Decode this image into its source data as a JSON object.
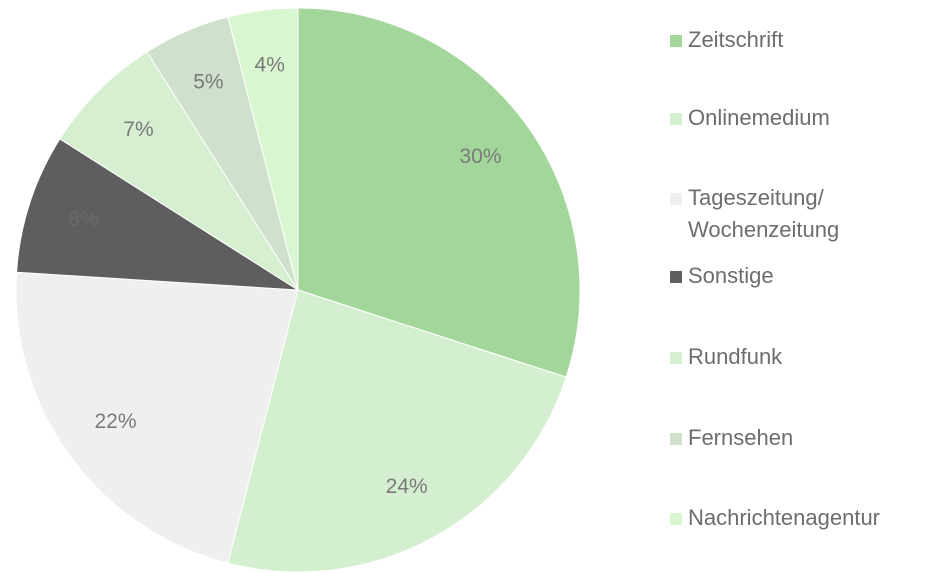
{
  "chart_data": {
    "type": "pie",
    "categories": [
      "Zeitschrift",
      "Onlinemedium",
      "Tageszeitung/ Wochenzeitung",
      "Sonstige",
      "Rundfunk",
      "Fernsehen",
      "Nachrichtenagentur"
    ],
    "values": [
      30,
      24,
      22,
      8,
      7,
      5,
      4
    ],
    "value_labels": [
      "30%",
      "24%",
      "22%",
      "8%",
      "7%",
      "5%",
      "4%"
    ],
    "colors": [
      "#a3d69a",
      "#d4efcf",
      "#efefef",
      "#5e5e5e",
      "#d6efd1",
      "#cfe0cc",
      "#d8f7d1"
    ],
    "legend": "right"
  }
}
